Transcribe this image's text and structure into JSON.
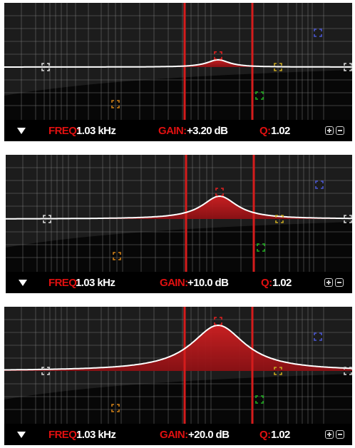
{
  "panels": [
    {
      "freq_label": "FREQ:",
      "freq_value": "1.03 kHz",
      "gain_label": "GAIN:",
      "gain_value": "+3.20 dB",
      "q_label": "Q:",
      "q_value": "1.02",
      "gain_db": 3.2
    },
    {
      "freq_label": "FREQ:",
      "freq_value": "1.03 kHz",
      "gain_label": "GAIN:",
      "gain_value": "+10.0 dB",
      "q_label": "Q:",
      "q_value": "1.02",
      "gain_db": 10.0
    },
    {
      "freq_label": "FREQ:",
      "freq_value": "1.03 kHz",
      "gain_label": "GAIN:",
      "gain_value": "+20.0 dB",
      "q_label": "Q:",
      "q_value": "1.02",
      "gain_db": 20.0
    }
  ],
  "colors": {
    "label_red": "#e01010",
    "band_fill": "#b3161a",
    "band_line": "#d41c1c",
    "curve": "#ffffff",
    "grid": "#8a8a8a",
    "handle_white": "#d8d8d8",
    "handle_orange": "#d08018",
    "handle_green": "#20b020",
    "handle_yellow": "#c8a820",
    "handle_blue": "#4a56d0",
    "handle_red": "#e02020"
  },
  "icons": {
    "menu": "triangle-down-icon",
    "add": "plus-box-icon",
    "remove": "minus-box-icon"
  }
}
